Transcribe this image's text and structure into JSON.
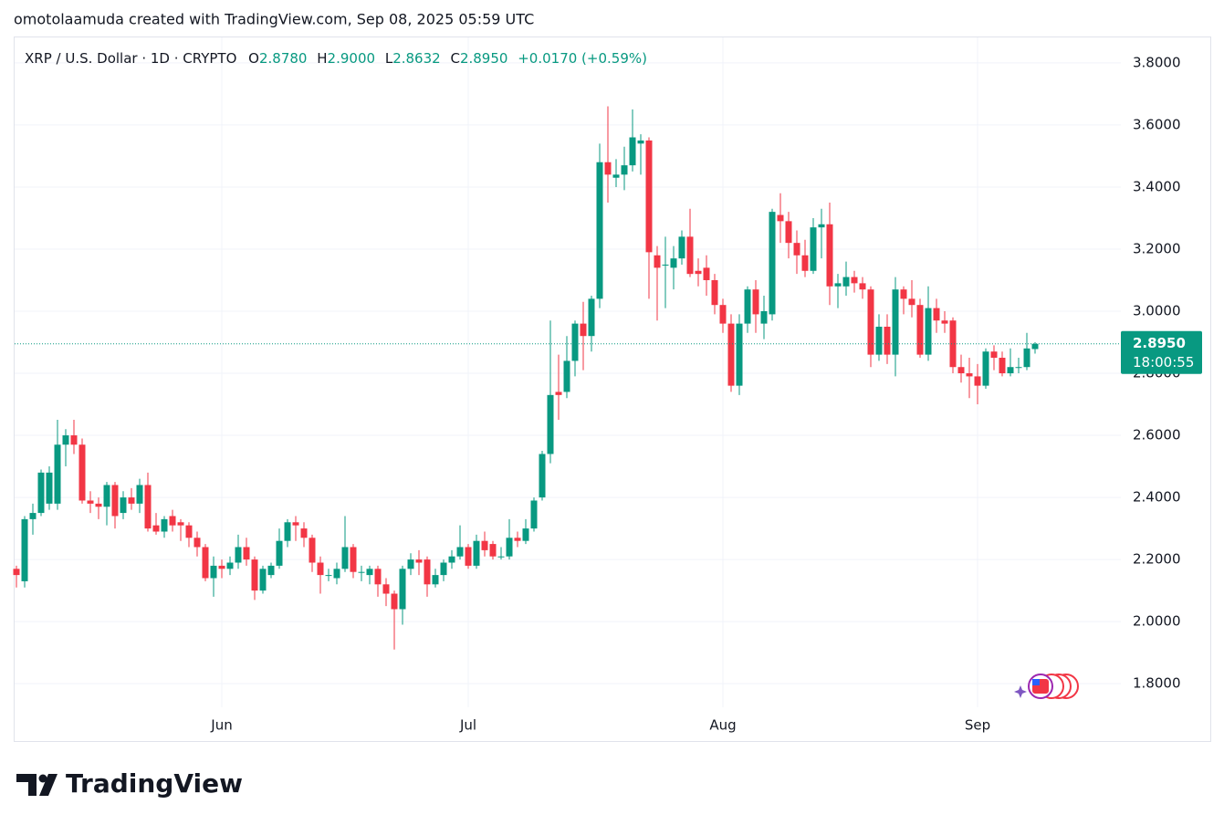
{
  "header": {
    "caption": "omotolaamuda created with TradingView.com, Sep 08, 2025 05:59 UTC"
  },
  "chart_data": {
    "type": "candlestick",
    "title": "XRP / U.S. Dollar · 1D · CRYPTO",
    "legend_fields": [
      {
        "key": "O",
        "value": "2.8780"
      },
      {
        "key": "H",
        "value": "2.9000"
      },
      {
        "key": "L",
        "value": "2.8632"
      },
      {
        "key": "C",
        "value": "2.8950"
      }
    ],
    "change": "+0.0170 (+0.59%)",
    "categories": [
      null,
      null,
      null,
      null,
      null,
      null,
      null,
      null,
      null,
      null,
      null,
      null,
      null,
      null,
      null,
      null,
      null,
      null,
      null,
      null,
      null,
      null,
      null,
      null,
      null,
      "Jun",
      null,
      null,
      null,
      null,
      null,
      null,
      null,
      null,
      null,
      null,
      null,
      null,
      null,
      null,
      null,
      null,
      null,
      null,
      null,
      null,
      null,
      null,
      null,
      null,
      null,
      null,
      null,
      null,
      null,
      "Jul",
      null,
      null,
      null,
      null,
      null,
      null,
      null,
      null,
      null,
      null,
      null,
      null,
      null,
      null,
      null,
      null,
      null,
      null,
      null,
      null,
      null,
      null,
      null,
      null,
      null,
      null,
      null,
      null,
      null,
      null,
      "Aug",
      null,
      null,
      null,
      null,
      null,
      null,
      null,
      null,
      null,
      null,
      null,
      null,
      null,
      null,
      null,
      null,
      null,
      null,
      null,
      null,
      null,
      null,
      null,
      null,
      null,
      null,
      null,
      null,
      null,
      null,
      "Sep",
      null,
      null,
      null,
      null,
      null,
      null,
      null
    ],
    "open": [
      2.17,
      2.13,
      2.33,
      2.35,
      2.38,
      2.38,
      2.57,
      2.6,
      2.57,
      2.39,
      2.38,
      2.37,
      2.44,
      2.35,
      2.4,
      2.38,
      2.44,
      2.31,
      2.29,
      2.34,
      2.32,
      2.31,
      2.27,
      2.24,
      2.14,
      2.18,
      2.17,
      2.19,
      2.24,
      2.2,
      2.1,
      2.15,
      2.18,
      2.26,
      2.32,
      2.3,
      2.27,
      2.19,
      2.15,
      2.14,
      2.17,
      2.24,
      2.16,
      2.15,
      2.17,
      2.12,
      2.09,
      2.04,
      2.17,
      2.2,
      2.2,
      2.12,
      2.15,
      2.19,
      2.21,
      2.24,
      2.18,
      2.26,
      2.25,
      2.21,
      2.21,
      2.27,
      2.26,
      2.3,
      2.4,
      2.54,
      2.74,
      2.74,
      2.84,
      2.96,
      2.92,
      3.04,
      3.48,
      3.43,
      3.44,
      3.47,
      3.54,
      3.55,
      3.18,
      3.15,
      3.14,
      3.17,
      3.24,
      3.13,
      3.14,
      3.1,
      3.02,
      2.96,
      2.76,
      2.96,
      3.07,
      2.96,
      2.99,
      3.31,
      3.29,
      3.22,
      3.18,
      3.13,
      3.27,
      3.28,
      3.08,
      3.08,
      3.11,
      3.09,
      3.07,
      2.86,
      2.95,
      2.86,
      3.07,
      3.04,
      3.02,
      2.86,
      3.01,
      2.97,
      2.97,
      2.82,
      2.8,
      2.79,
      2.76,
      2.87,
      2.85,
      2.8,
      2.82,
      2.82,
      2.878
    ],
    "high": [
      2.18,
      2.34,
      2.38,
      2.49,
      2.5,
      2.65,
      2.62,
      2.65,
      2.59,
      2.42,
      2.4,
      2.45,
      2.45,
      2.42,
      2.43,
      2.46,
      2.48,
      2.35,
      2.34,
      2.36,
      2.33,
      2.32,
      2.29,
      2.25,
      2.21,
      2.2,
      2.21,
      2.28,
      2.27,
      2.21,
      2.18,
      2.19,
      2.3,
      2.33,
      2.34,
      2.32,
      2.28,
      2.21,
      2.17,
      2.19,
      2.34,
      2.25,
      2.18,
      2.18,
      2.18,
      2.14,
      2.1,
      2.18,
      2.22,
      2.23,
      2.21,
      2.17,
      2.2,
      2.23,
      2.31,
      2.25,
      2.28,
      2.29,
      2.26,
      2.24,
      2.33,
      2.29,
      2.33,
      2.4,
      2.55,
      2.97,
      2.86,
      2.92,
      2.97,
      3.03,
      3.05,
      3.54,
      3.66,
      3.49,
      3.53,
      3.65,
      3.57,
      3.56,
      3.21,
      3.24,
      3.21,
      3.26,
      3.33,
      3.17,
      3.18,
      3.12,
      3.04,
      2.99,
      2.99,
      3.08,
      3.1,
      3.05,
      3.33,
      3.38,
      3.32,
      3.26,
      3.23,
      3.3,
      3.33,
      3.35,
      3.12,
      3.16,
      3.13,
      3.11,
      3.08,
      2.99,
      2.99,
      3.11,
      3.08,
      3.1,
      3.04,
      3.08,
      3.04,
      3.0,
      2.98,
      2.86,
      2.85,
      2.83,
      2.88,
      2.89,
      2.87,
      2.88,
      2.85,
      2.93,
      2.9
    ],
    "low": [
      2.11,
      2.11,
      2.28,
      2.34,
      2.36,
      2.36,
      2.5,
      2.54,
      2.38,
      2.35,
      2.33,
      2.31,
      2.3,
      2.33,
      2.36,
      2.35,
      2.29,
      2.28,
      2.27,
      2.29,
      2.26,
      2.24,
      2.21,
      2.13,
      2.08,
      2.14,
      2.15,
      2.17,
      2.18,
      2.07,
      2.09,
      2.14,
      2.17,
      2.24,
      2.26,
      2.24,
      2.16,
      2.09,
      2.13,
      2.12,
      2.16,
      2.14,
      2.13,
      2.12,
      2.08,
      2.05,
      1.91,
      1.99,
      2.15,
      2.15,
      2.08,
      2.11,
      2.13,
      2.17,
      2.2,
      2.17,
      2.17,
      2.21,
      2.2,
      2.2,
      2.2,
      2.24,
      2.25,
      2.29,
      2.39,
      2.51,
      2.65,
      2.72,
      2.79,
      2.81,
      2.87,
      3.01,
      3.35,
      3.4,
      3.39,
      3.45,
      3.44,
      3.04,
      2.97,
      3.01,
      3.07,
      3.15,
      3.11,
      3.08,
      3.05,
      2.99,
      2.93,
      2.74,
      2.73,
      2.93,
      2.93,
      2.91,
      2.97,
      3.22,
      3.17,
      3.12,
      3.11,
      3.12,
      3.17,
      3.02,
      3.01,
      3.05,
      3.06,
      3.04,
      2.82,
      2.84,
      2.83,
      2.79,
      2.99,
      2.98,
      2.85,
      2.84,
      2.93,
      2.93,
      2.8,
      2.77,
      2.72,
      2.7,
      2.75,
      2.81,
      2.79,
      2.79,
      2.8,
      2.81,
      2.8632
    ],
    "close": [
      2.15,
      2.33,
      2.35,
      2.48,
      2.48,
      2.57,
      2.6,
      2.57,
      2.39,
      2.38,
      2.37,
      2.44,
      2.34,
      2.4,
      2.38,
      2.44,
      2.3,
      2.29,
      2.33,
      2.31,
      2.31,
      2.27,
      2.24,
      2.14,
      2.18,
      2.17,
      2.19,
      2.24,
      2.2,
      2.1,
      2.17,
      2.18,
      2.26,
      2.32,
      2.31,
      2.27,
      2.19,
      2.15,
      2.15,
      2.17,
      2.24,
      2.16,
      2.16,
      2.17,
      2.12,
      2.09,
      2.04,
      2.17,
      2.2,
      2.19,
      2.12,
      2.15,
      2.19,
      2.21,
      2.24,
      2.18,
      2.26,
      2.23,
      2.21,
      2.21,
      2.27,
      2.26,
      2.3,
      2.39,
      2.54,
      2.73,
      2.73,
      2.84,
      2.96,
      2.92,
      3.04,
      3.48,
      3.44,
      3.44,
      3.47,
      3.56,
      3.55,
      3.19,
      3.14,
      3.15,
      3.17,
      3.24,
      3.12,
      3.12,
      3.1,
      3.02,
      2.96,
      2.76,
      2.96,
      3.07,
      2.99,
      3.0,
      3.32,
      3.29,
      3.22,
      3.18,
      3.13,
      3.27,
      3.28,
      3.08,
      3.09,
      3.11,
      3.09,
      3.07,
      2.86,
      2.95,
      2.86,
      3.07,
      3.04,
      3.02,
      2.86,
      3.01,
      2.97,
      2.96,
      2.82,
      2.8,
      2.79,
      2.76,
      2.87,
      2.85,
      2.8,
      2.82,
      2.82,
      2.88,
      2.895
    ],
    "up_color": "#089981",
    "down_color": "#f23645",
    "ylim": [
      1.724,
      3.882
    ],
    "yticks": [
      {
        "value": 1.8,
        "label": "1.8000"
      },
      {
        "value": 2.0,
        "label": "2.0000"
      },
      {
        "value": 2.2,
        "label": "2.2000"
      },
      {
        "value": 2.4,
        "label": "2.4000"
      },
      {
        "value": 2.6,
        "label": "2.6000"
      },
      {
        "value": 2.8,
        "label": "2.8000"
      },
      {
        "value": 3.0,
        "label": "3.0000"
      },
      {
        "value": 3.2,
        "label": "3.2000"
      },
      {
        "value": 3.4,
        "label": "3.4000"
      },
      {
        "value": 3.6,
        "label": "3.6000"
      },
      {
        "value": 3.8,
        "label": "3.8000"
      }
    ],
    "last_price": {
      "value": 2.895,
      "label": "2.8950",
      "countdown": "18:00:55"
    },
    "grid": true
  },
  "footer": {
    "brand": "TradingView"
  }
}
